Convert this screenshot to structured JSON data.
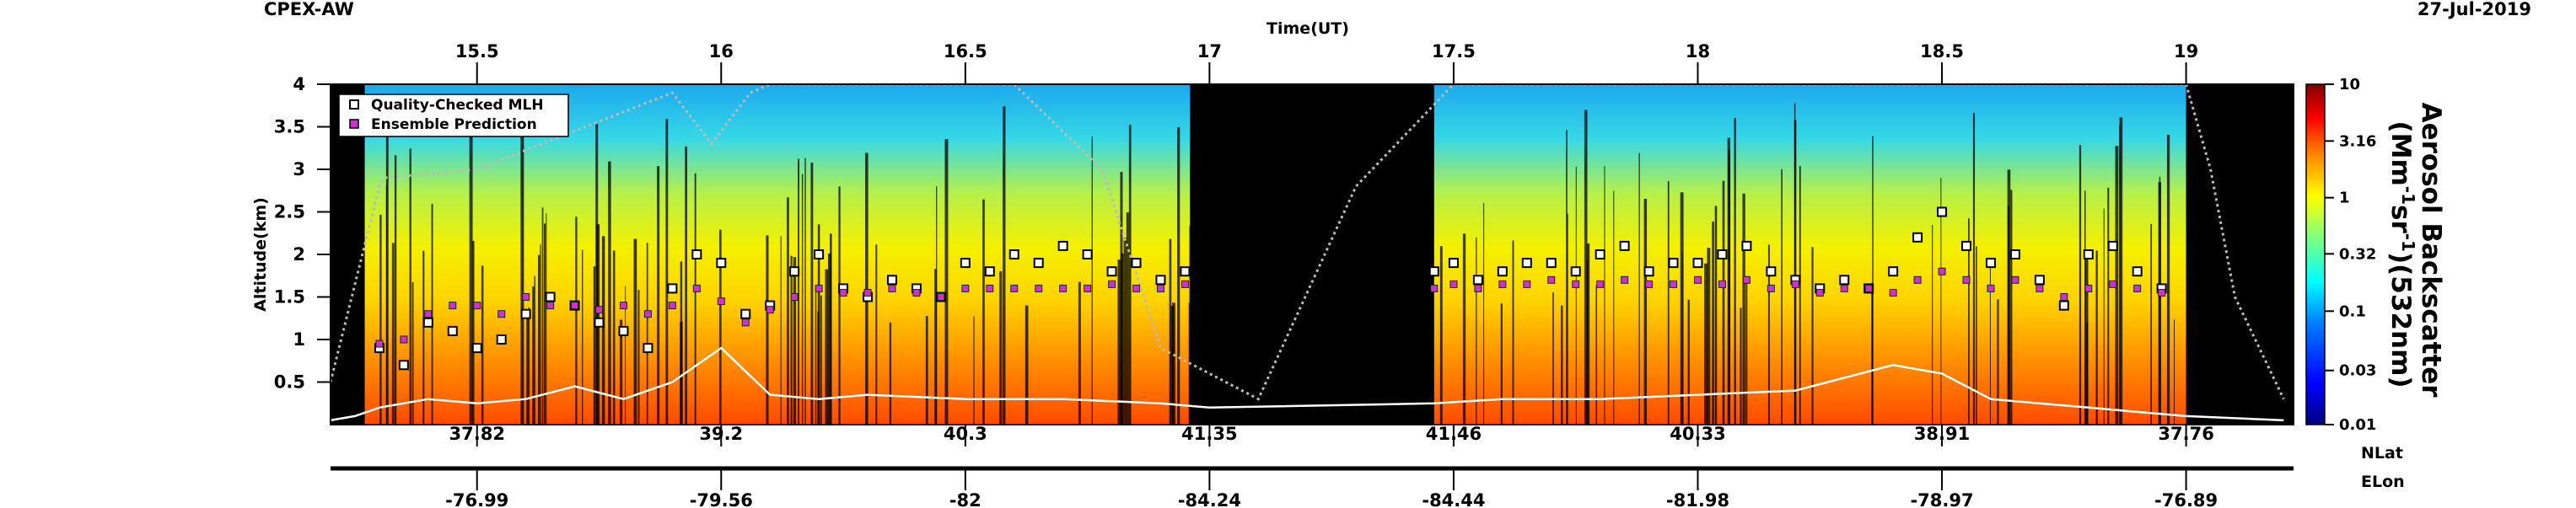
{
  "header": {
    "campaign": "CPEX-AW",
    "date": "27-Jul-2019"
  },
  "chart_data": {
    "type": "heatmap",
    "title": "",
    "top_axis_label": "Time(UT)",
    "xlim": [
      15.2,
      19.22
    ],
    "x_ticks": [
      15.5,
      16,
      16.5,
      17,
      17.5,
      18,
      18.5,
      19
    ],
    "x_tick_labels": [
      "15.5",
      "16",
      "16.5",
      "17",
      "17.5",
      "18",
      "18.5",
      "19"
    ],
    "ylabel": "Altitude(km)",
    "ylim": [
      0,
      4
    ],
    "y_ticks": [
      0.5,
      1,
      1.5,
      2,
      2.5,
      3,
      3.5,
      4
    ],
    "y_tick_labels": [
      "0.5",
      "1",
      "1.5",
      "2",
      "2.5",
      "3",
      "3.5",
      "4"
    ],
    "colorbar": {
      "label_line1": "Aerosol Backscatter",
      "label_line2": "(Mm",
      "label_sup1": "-1",
      "label_mid": "sr",
      "label_sup2": "-1",
      "label_end": ")(532nm)",
      "scale": "log",
      "ticks": [
        10,
        3.16,
        1,
        0.32,
        0.1,
        0.03,
        0.01
      ],
      "tick_labels": [
        "10",
        "3.16",
        "1",
        "0.32",
        "0.1",
        "0.03",
        "0.01"
      ],
      "colors": [
        "#00007f",
        "#0000ff",
        "#007fff",
        "#00ffff",
        "#7fff7f",
        "#ffff00",
        "#ff7f00",
        "#ff0000",
        "#7f0000"
      ]
    },
    "legend": {
      "position": "top-left",
      "entries": [
        {
          "label": "Quality-Checked MLH",
          "marker": "square-white",
          "color": "#ffffff"
        },
        {
          "label": "Ensemble Prediction",
          "marker": "square-magenta",
          "color": "#cc33cc"
        }
      ]
    },
    "nav_axes": {
      "lat_label": "NLat",
      "lon_label": "ELon",
      "lat_ticks": [
        "37.82",
        "39.2",
        "40.3",
        "41.35",
        "41.46",
        "40.33",
        "38.91",
        "37.76"
      ],
      "lon_ticks": [
        "-76.99",
        "-79.56",
        "-82",
        "-84.24",
        "-84.44",
        "-81.98",
        "-78.97",
        "-76.89"
      ]
    },
    "blank_time_ranges": [
      [
        16.96,
        17.46
      ],
      [
        19.0,
        19.22
      ]
    ],
    "series": [
      {
        "name": "Quality-Checked MLH",
        "x": [
          15.3,
          15.35,
          15.4,
          15.45,
          15.5,
          15.55,
          15.6,
          15.65,
          15.7,
          15.75,
          15.8,
          15.85,
          15.9,
          15.95,
          16.0,
          16.05,
          16.1,
          16.15,
          16.2,
          16.25,
          16.3,
          16.35,
          16.4,
          16.45,
          16.5,
          16.55,
          16.6,
          16.65,
          16.7,
          16.75,
          16.8,
          16.85,
          16.9,
          16.95,
          17.46,
          17.5,
          17.55,
          17.6,
          17.65,
          17.7,
          17.75,
          17.8,
          17.85,
          17.9,
          17.95,
          18.0,
          18.05,
          18.1,
          18.15,
          18.2,
          18.25,
          18.3,
          18.35,
          18.4,
          18.45,
          18.5,
          18.55,
          18.6,
          18.65,
          18.7,
          18.75,
          18.8,
          18.85,
          18.9,
          18.95
        ],
        "values": [
          0.9,
          0.7,
          1.2,
          1.1,
          0.9,
          1.0,
          1.3,
          1.5,
          1.4,
          1.2,
          1.1,
          0.9,
          1.6,
          2.0,
          1.9,
          1.3,
          1.4,
          1.8,
          2.0,
          1.6,
          1.5,
          1.7,
          1.6,
          1.5,
          1.9,
          1.8,
          2.0,
          1.9,
          2.1,
          2.0,
          1.8,
          1.9,
          1.7,
          1.8,
          1.8,
          1.9,
          1.7,
          1.8,
          1.9,
          1.9,
          1.8,
          2.0,
          2.1,
          1.8,
          1.9,
          1.9,
          2.0,
          2.1,
          1.8,
          1.7,
          1.6,
          1.7,
          1.6,
          1.8,
          2.2,
          2.5,
          2.1,
          1.9,
          2.0,
          1.7,
          1.4,
          2.0,
          2.1,
          1.8,
          1.6
        ]
      },
      {
        "name": "Ensemble Prediction",
        "x": [
          15.3,
          15.35,
          15.4,
          15.45,
          15.5,
          15.55,
          15.6,
          15.65,
          15.7,
          15.75,
          15.8,
          15.85,
          15.9,
          15.95,
          16.0,
          16.05,
          16.1,
          16.15,
          16.2,
          16.25,
          16.3,
          16.35,
          16.4,
          16.45,
          16.5,
          16.55,
          16.6,
          16.65,
          16.7,
          16.75,
          16.8,
          16.85,
          16.9,
          16.95,
          17.46,
          17.5,
          17.55,
          17.6,
          17.65,
          17.7,
          17.75,
          17.8,
          17.85,
          17.9,
          17.95,
          18.0,
          18.05,
          18.1,
          18.15,
          18.2,
          18.25,
          18.3,
          18.35,
          18.4,
          18.45,
          18.5,
          18.55,
          18.6,
          18.65,
          18.7,
          18.75,
          18.8,
          18.85,
          18.9,
          18.95
        ],
        "values": [
          0.95,
          1.0,
          1.3,
          1.4,
          1.4,
          1.3,
          1.5,
          1.4,
          1.4,
          1.35,
          1.4,
          1.3,
          1.4,
          1.6,
          1.45,
          1.2,
          1.35,
          1.5,
          1.6,
          1.55,
          1.55,
          1.6,
          1.55,
          1.5,
          1.6,
          1.6,
          1.6,
          1.6,
          1.6,
          1.6,
          1.65,
          1.6,
          1.6,
          1.65,
          1.6,
          1.65,
          1.6,
          1.65,
          1.65,
          1.7,
          1.65,
          1.65,
          1.7,
          1.65,
          1.65,
          1.7,
          1.65,
          1.7,
          1.6,
          1.65,
          1.55,
          1.6,
          1.6,
          1.55,
          1.7,
          1.8,
          1.7,
          1.6,
          1.7,
          1.6,
          1.5,
          1.6,
          1.65,
          1.6,
          1.55
        ]
      },
      {
        "name": "",
        "x": [
          15.2,
          15.25,
          15.3,
          15.4,
          15.5,
          15.6,
          15.7,
          15.8,
          15.9,
          16.0,
          16.1,
          16.2,
          16.3,
          16.5,
          16.7,
          16.9,
          17.0,
          17.46,
          17.6,
          17.8,
          18.0,
          18.2,
          18.4,
          18.5,
          18.6,
          18.7,
          18.8,
          18.9,
          19.0,
          19.2
        ],
        "values": [
          0.05,
          0.1,
          0.2,
          0.3,
          0.25,
          0.3,
          0.45,
          0.3,
          0.5,
          0.9,
          0.35,
          0.3,
          0.35,
          0.3,
          0.3,
          0.25,
          0.2,
          0.25,
          0.3,
          0.3,
          0.35,
          0.4,
          0.7,
          0.6,
          0.3,
          0.25,
          0.2,
          0.15,
          0.1,
          0.05
        ]
      },
      {
        "name": "",
        "x": [
          15.2,
          15.3,
          15.31,
          15.5,
          15.9,
          15.98,
          16.06,
          16.1,
          16.6,
          16.78,
          16.9,
          17.1,
          17.3,
          17.5,
          19.0,
          19.05,
          19.1,
          19.2
        ],
        "values": [
          0.5,
          2.8,
          2.9,
          3.0,
          3.9,
          3.3,
          3.9,
          4.0,
          4.0,
          3.0,
          0.9,
          0.3,
          2.8,
          4.0,
          4.0,
          3.0,
          1.5,
          0.3
        ]
      }
    ]
  }
}
